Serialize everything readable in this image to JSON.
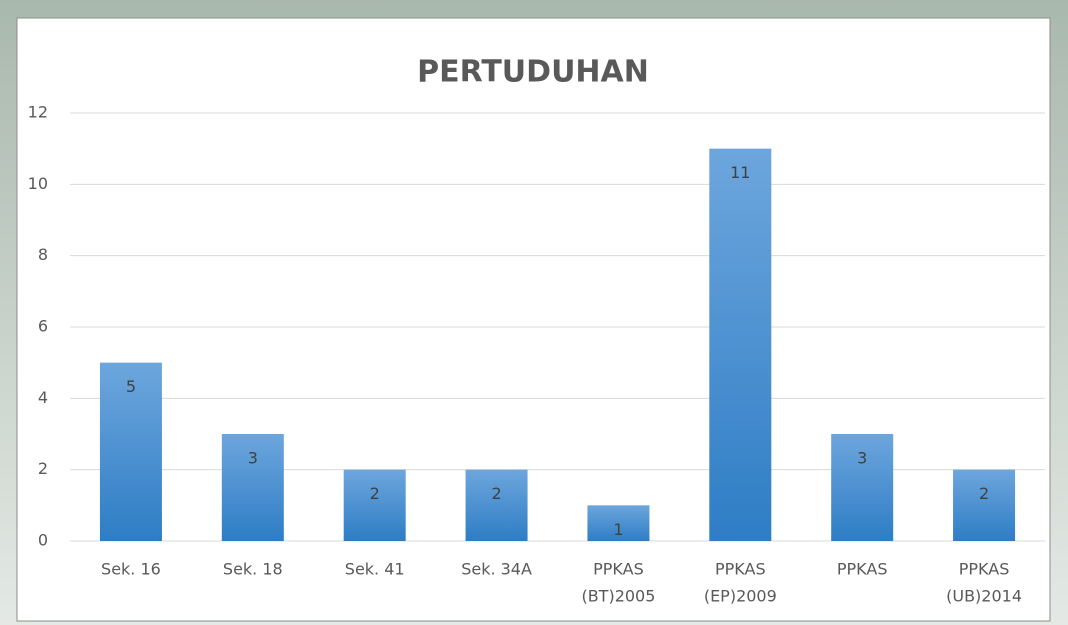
{
  "chart_data": {
    "type": "bar",
    "title": "PERTUDUHAN",
    "categories": [
      [
        "Sek. 16"
      ],
      [
        "Sek. 18"
      ],
      [
        "Sek. 41"
      ],
      [
        "Sek. 34A"
      ],
      [
        "PPKAS",
        "(BT)2005"
      ],
      [
        "PPKAS",
        "(EP)2009"
      ],
      [
        "PPKAS"
      ],
      [
        "PPKAS",
        "(UB)2014"
      ]
    ],
    "values": [
      5,
      3,
      2,
      2,
      1,
      11,
      3,
      2
    ],
    "color": "#3d8bd0",
    "ylim": [
      0,
      12
    ],
    "yticks": [
      0,
      2,
      4,
      6,
      8,
      10,
      12
    ],
    "grid": true
  }
}
